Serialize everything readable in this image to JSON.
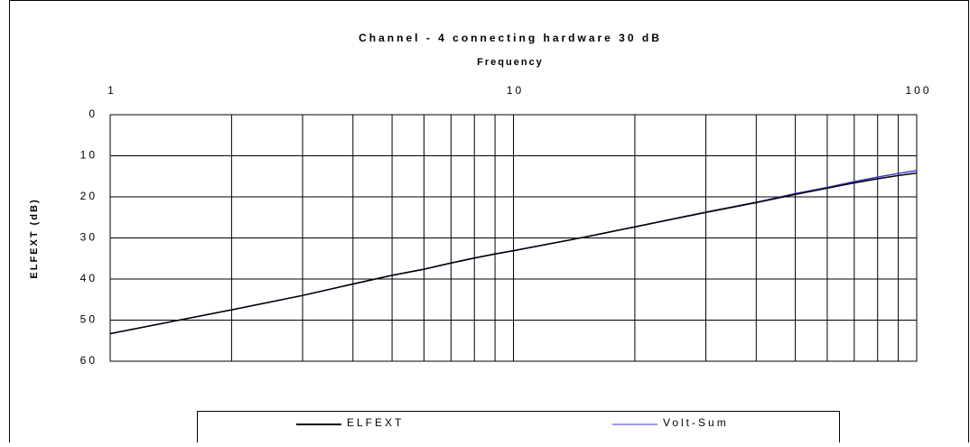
{
  "chart_data": {
    "type": "line",
    "title": "Channel - 4 connecting hardware 30 dB",
    "x_label": "Frequency",
    "y_label": "ELFEXT (dB)",
    "x_log": true,
    "y_inverted": true,
    "grid": true,
    "legend": "bottom",
    "xlim": [
      1,
      100
    ],
    "xticks": [
      1,
      10,
      100
    ],
    "x_minor_ticks": [
      2,
      3,
      4,
      5,
      6,
      7,
      8,
      9,
      20,
      30,
      40,
      50,
      60,
      70,
      80,
      90
    ],
    "ylim": [
      0,
      60
    ],
    "yticks": [
      0,
      10,
      20,
      30,
      40,
      50,
      60
    ],
    "x": [
      1,
      2,
      3,
      4,
      5,
      6,
      7,
      8,
      9,
      10,
      15,
      20,
      30,
      40,
      50,
      60,
      70,
      80,
      90,
      100
    ],
    "series": [
      {
        "name": "ELFEXT",
        "color": "#000000",
        "values": [
          53.3,
          47.5,
          44.0,
          41.2,
          39.1,
          37.6,
          36.1,
          34.9,
          33.9,
          33.1,
          29.8,
          27.3,
          23.8,
          21.4,
          19.4,
          17.9,
          16.6,
          15.6,
          14.8,
          14.2
        ]
      },
      {
        "name": "Volt-Sum",
        "color": "#3a3ad0",
        "values": [
          53.3,
          47.5,
          44.0,
          41.2,
          39.1,
          37.6,
          36.1,
          34.9,
          33.9,
          33.1,
          29.8,
          27.3,
          23.7,
          21.3,
          19.2,
          17.7,
          16.3,
          15.2,
          14.3,
          13.6
        ]
      }
    ]
  }
}
